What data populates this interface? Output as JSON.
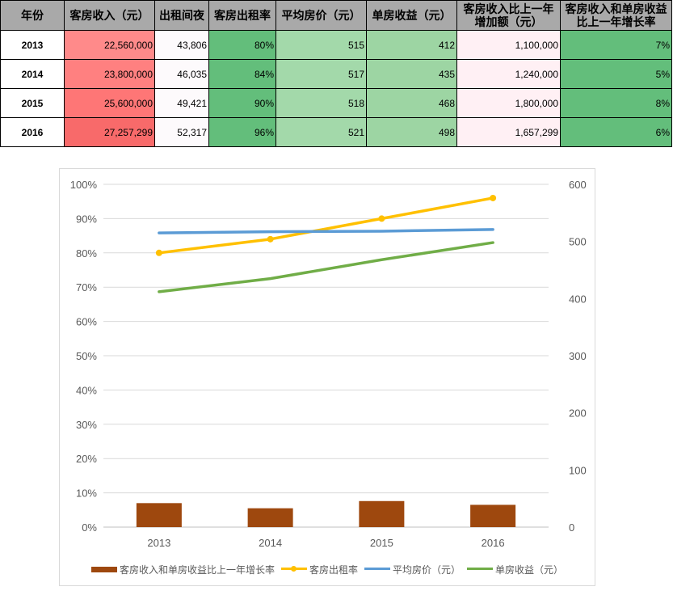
{
  "table": {
    "headers": [
      "年份",
      "客房收入（元）",
      "出租间夜",
      "客房出租率",
      "平均房价（元）",
      "单房收益（元）",
      "客房收入比上一年增加额（元）",
      "客房收入和单房收益比上一年增长率"
    ],
    "rows": [
      [
        "2013",
        "22,560,000",
        "43,806",
        "80%",
        "515",
        "412",
        "1,100,000",
        "7%"
      ],
      [
        "2014",
        "23,800,000",
        "46,035",
        "84%",
        "517",
        "435",
        "1,240,000",
        "5%"
      ],
      [
        "2015",
        "25,600,000",
        "49,421",
        "90%",
        "518",
        "468",
        "1,800,000",
        "8%"
      ],
      [
        "2016",
        "27,257,299",
        "52,317",
        "96%",
        "521",
        "498",
        "1,657,299",
        "6%"
      ]
    ],
    "colors": {
      "header_bg": "#a9a9a9",
      "revenue": [
        "#ff8a8a",
        "#ff8080",
        "#fe7676",
        "#f86a6a"
      ],
      "nights": "#fdfafc",
      "occupancy": "#63be7b",
      "adr": "#a3d9aa",
      "revpar": "#9dd5a3",
      "increase": "#fff0f4",
      "growth": "#63be7b"
    }
  },
  "chart_data": {
    "type": "bar",
    "categories": [
      "2013",
      "2014",
      "2015",
      "2016"
    ],
    "y_left": {
      "min": 0,
      "max": 1.0,
      "ticks": [
        "0%",
        "10%",
        "20%",
        "30%",
        "40%",
        "50%",
        "60%",
        "70%",
        "80%",
        "90%",
        "100%"
      ]
    },
    "y_right": {
      "min": 0,
      "max": 600,
      "ticks": [
        "0",
        "100",
        "200",
        "300",
        "400",
        "500",
        "600"
      ]
    },
    "grid": true,
    "legend_position": "bottom",
    "series": [
      {
        "name": "客房收入和单房收益比上一年增长率",
        "type": "bar",
        "axis": "left",
        "color": "#9e480e",
        "values": [
          0.07,
          0.055,
          0.076,
          0.065
        ]
      },
      {
        "name": "客房出租率",
        "type": "line",
        "axis": "left",
        "color": "#ffc000",
        "markers": true,
        "values": [
          0.8,
          0.84,
          0.9,
          0.96
        ]
      },
      {
        "name": "平均房价（元）",
        "type": "line",
        "axis": "right",
        "color": "#5b9bd5",
        "markers": false,
        "values": [
          515,
          517,
          518,
          521
        ]
      },
      {
        "name": "单房收益（元）",
        "type": "line",
        "axis": "right",
        "color": "#70ad47",
        "markers": false,
        "values": [
          412,
          435,
          468,
          498
        ]
      }
    ]
  }
}
